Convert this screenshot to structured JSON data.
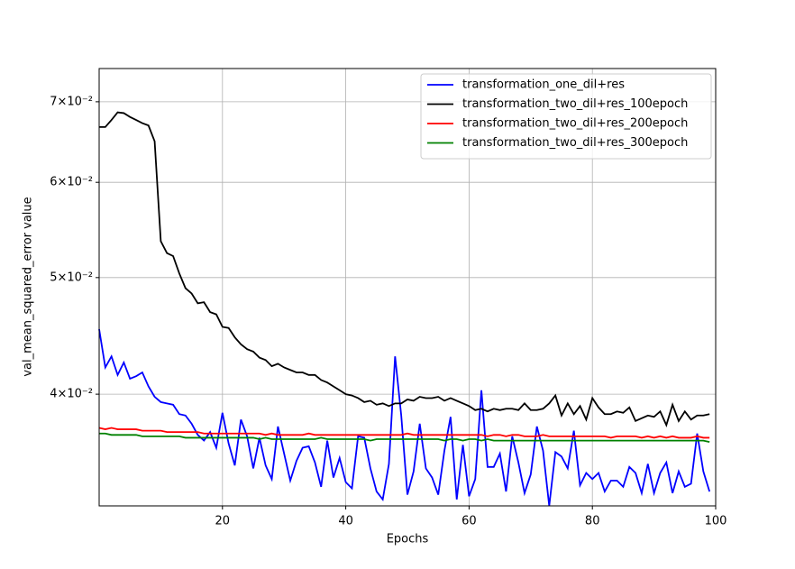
{
  "chart_data": {
    "type": "line",
    "x_label": "Epochs",
    "y_label": "val_mean_squared_error value",
    "x": [
      0,
      1,
      2,
      3,
      4,
      5,
      6,
      7,
      8,
      9,
      10,
      11,
      12,
      13,
      14,
      15,
      16,
      17,
      18,
      19,
      20,
      21,
      22,
      23,
      24,
      25,
      26,
      27,
      28,
      29,
      30,
      31,
      32,
      33,
      34,
      35,
      36,
      37,
      38,
      39,
      40,
      41,
      42,
      43,
      44,
      45,
      46,
      47,
      48,
      49,
      50,
      51,
      52,
      53,
      54,
      55,
      56,
      57,
      58,
      59,
      60,
      61,
      62,
      63,
      64,
      65,
      66,
      67,
      68,
      69,
      70,
      71,
      72,
      73,
      74,
      75,
      76,
      77,
      78,
      79,
      80,
      81,
      82,
      83,
      84,
      85,
      86,
      87,
      88,
      89,
      90,
      91,
      92,
      93,
      94,
      95,
      96,
      97,
      98,
      99
    ],
    "series": [
      {
        "name": "transformation_one_dil+res",
        "color": "#0000ff",
        "values": [
          0.0453,
          0.0421,
          0.043,
          0.0415,
          0.0425,
          0.0412,
          0.0414,
          0.0417,
          0.0406,
          0.0398,
          0.0394,
          0.0393,
          0.0392,
          0.0385,
          0.0384,
          0.0378,
          0.037,
          0.0366,
          0.0372,
          0.0361,
          0.0386,
          0.0364,
          0.0349,
          0.0381,
          0.0369,
          0.0347,
          0.0368,
          0.0349,
          0.034,
          0.0376,
          0.0357,
          0.0339,
          0.0352,
          0.0361,
          0.0362,
          0.0351,
          0.0335,
          0.0366,
          0.0341,
          0.0354,
          0.0338,
          0.0334,
          0.0369,
          0.0368,
          0.0347,
          0.0332,
          0.0327,
          0.035,
          0.043,
          0.0384,
          0.033,
          0.0345,
          0.0378,
          0.0347,
          0.0341,
          0.033,
          0.0359,
          0.0383,
          0.0327,
          0.0363,
          0.0329,
          0.034,
          0.0403,
          0.0348,
          0.0348,
          0.0357,
          0.0332,
          0.0369,
          0.0351,
          0.0331,
          0.0343,
          0.0376,
          0.0359,
          0.0323,
          0.0358,
          0.0355,
          0.0347,
          0.0373,
          0.0336,
          0.0344,
          0.034,
          0.0344,
          0.0332,
          0.0339,
          0.0339,
          0.0335,
          0.0348,
          0.0344,
          0.0331,
          0.035,
          0.0331,
          0.0344,
          0.0351,
          0.0331,
          0.0345,
          0.0335,
          0.0337,
          0.0371,
          0.0345,
          0.0332
        ]
      },
      {
        "name": "transformation_two_dil+res_100epoch",
        "color": "#000000",
        "values": [
          0.0667,
          0.0667,
          0.0676,
          0.0686,
          0.0685,
          0.068,
          0.0676,
          0.0672,
          0.0669,
          0.0649,
          0.0536,
          0.0524,
          0.0521,
          0.0504,
          0.049,
          0.0485,
          0.0476,
          0.0477,
          0.0468,
          0.0466,
          0.0455,
          0.0454,
          0.0446,
          0.044,
          0.0436,
          0.0434,
          0.0429,
          0.0427,
          0.0422,
          0.0424,
          0.0421,
          0.0419,
          0.0417,
          0.0417,
          0.0415,
          0.0415,
          0.0411,
          0.0409,
          0.0406,
          0.0403,
          0.04,
          0.0399,
          0.0397,
          0.0394,
          0.0395,
          0.0392,
          0.0393,
          0.0391,
          0.0393,
          0.0393,
          0.0396,
          0.0395,
          0.0398,
          0.0397,
          0.0397,
          0.0398,
          0.0395,
          0.0397,
          0.0395,
          0.0393,
          0.0391,
          0.0388,
          0.0389,
          0.0387,
          0.0389,
          0.0388,
          0.0389,
          0.0389,
          0.0388,
          0.0393,
          0.0388,
          0.0388,
          0.0389,
          0.0393,
          0.0399,
          0.0384,
          0.0393,
          0.0385,
          0.0391,
          0.0381,
          0.0397,
          0.039,
          0.0385,
          0.0385,
          0.0387,
          0.0386,
          0.039,
          0.038,
          0.0382,
          0.0384,
          0.0383,
          0.0387,
          0.0377,
          0.0392,
          0.038,
          0.0387,
          0.0381,
          0.0384,
          0.0384,
          0.0385
        ]
      },
      {
        "name": "transformation_two_dil+res_200epoch",
        "color": "#ff0000",
        "values": [
          0.0375,
          0.0374,
          0.0375,
          0.0374,
          0.0374,
          0.0374,
          0.0374,
          0.0373,
          0.0373,
          0.0373,
          0.0373,
          0.0372,
          0.0372,
          0.0372,
          0.0372,
          0.0372,
          0.0372,
          0.0371,
          0.0371,
          0.0371,
          0.0371,
          0.0371,
          0.0371,
          0.0371,
          0.0371,
          0.0371,
          0.0371,
          0.037,
          0.0371,
          0.037,
          0.037,
          0.037,
          0.037,
          0.037,
          0.0371,
          0.037,
          0.037,
          0.037,
          0.037,
          0.037,
          0.037,
          0.037,
          0.037,
          0.037,
          0.037,
          0.037,
          0.037,
          0.037,
          0.037,
          0.037,
          0.0371,
          0.037,
          0.037,
          0.037,
          0.037,
          0.037,
          0.037,
          0.037,
          0.037,
          0.037,
          0.037,
          0.037,
          0.037,
          0.0369,
          0.037,
          0.037,
          0.0369,
          0.037,
          0.037,
          0.0369,
          0.0369,
          0.0369,
          0.037,
          0.0369,
          0.0369,
          0.0369,
          0.0369,
          0.0369,
          0.0369,
          0.0369,
          0.0369,
          0.0369,
          0.0369,
          0.0368,
          0.0369,
          0.0369,
          0.0369,
          0.0369,
          0.0368,
          0.0369,
          0.0368,
          0.0369,
          0.0368,
          0.0369,
          0.0368,
          0.0368,
          0.0368,
          0.0369,
          0.0368,
          0.0368
        ]
      },
      {
        "name": "transformation_two_dil+res_300epoch",
        "color": "#008000",
        "values": [
          0.0371,
          0.0371,
          0.037,
          0.037,
          0.037,
          0.037,
          0.037,
          0.0369,
          0.0369,
          0.0369,
          0.0369,
          0.0369,
          0.0369,
          0.0369,
          0.0368,
          0.0368,
          0.0368,
          0.0368,
          0.0368,
          0.0368,
          0.0368,
          0.0368,
          0.0368,
          0.0368,
          0.0368,
          0.0368,
          0.0367,
          0.0368,
          0.0367,
          0.0367,
          0.0367,
          0.0367,
          0.0367,
          0.0367,
          0.0367,
          0.0367,
          0.0368,
          0.0367,
          0.0367,
          0.0367,
          0.0367,
          0.0367,
          0.0367,
          0.0367,
          0.0366,
          0.0367,
          0.0367,
          0.0367,
          0.0367,
          0.0367,
          0.0367,
          0.0367,
          0.0367,
          0.0367,
          0.0367,
          0.0367,
          0.0366,
          0.0367,
          0.0367,
          0.0366,
          0.0367,
          0.0367,
          0.0366,
          0.0367,
          0.0366,
          0.0366,
          0.0366,
          0.0366,
          0.0366,
          0.0366,
          0.0366,
          0.0366,
          0.0366,
          0.0366,
          0.0366,
          0.0366,
          0.0366,
          0.0366,
          0.0366,
          0.0366,
          0.0366,
          0.0366,
          0.0366,
          0.0366,
          0.0366,
          0.0366,
          0.0366,
          0.0366,
          0.0366,
          0.0366,
          0.0366,
          0.0366,
          0.0366,
          0.0366,
          0.0366,
          0.0366,
          0.0366,
          0.0366,
          0.0366,
          0.0365
        ]
      }
    ],
    "xlim": [
      0,
      100
    ],
    "xticks": [
      20,
      40,
      60,
      80,
      100
    ],
    "ylim": [
      0.0323,
      0.0746
    ],
    "y_scale": "log",
    "yticks": [
      {
        "value": 0.04,
        "label": "4×10⁻²"
      },
      {
        "value": 0.05,
        "label": "5×10⁻²"
      },
      {
        "value": 0.06,
        "label": "6×10⁻²"
      },
      {
        "value": 0.07,
        "label": "7×10⁻²"
      }
    ],
    "grid": true,
    "legend": "upper right"
  }
}
